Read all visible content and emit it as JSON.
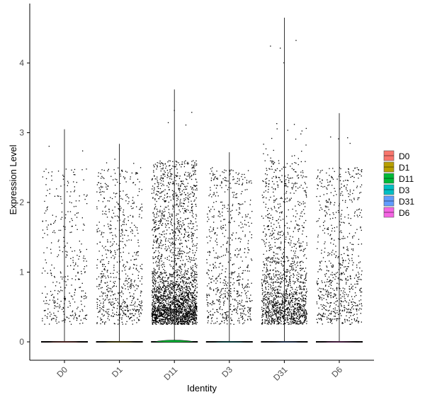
{
  "chart_data": {
    "type": "violin-jitter",
    "title": "",
    "xlabel": "Identity",
    "ylabel": "Expression Level",
    "ylim": [
      -0.25,
      4.8
    ],
    "yticks": [
      0,
      1,
      2,
      3,
      4
    ],
    "categories": [
      "D0",
      "D1",
      "D11",
      "D3",
      "D31",
      "D6"
    ],
    "colors": [
      "#F8766D",
      "#B79F00",
      "#00BA38",
      "#00BFC4",
      "#619CFF",
      "#F564E3"
    ],
    "max_values": [
      3.05,
      2.84,
      3.62,
      2.72,
      4.65,
      3.28
    ],
    "nonzero_point_counts": [
      360,
      680,
      2600,
      650,
      1500,
      700
    ],
    "legend": {
      "position": "right",
      "items": [
        "D0",
        "D1",
        "D11",
        "D3",
        "D31",
        "D6"
      ]
    },
    "grid": false
  },
  "colors": {
    "points": "#000000",
    "axis": "#000000"
  }
}
